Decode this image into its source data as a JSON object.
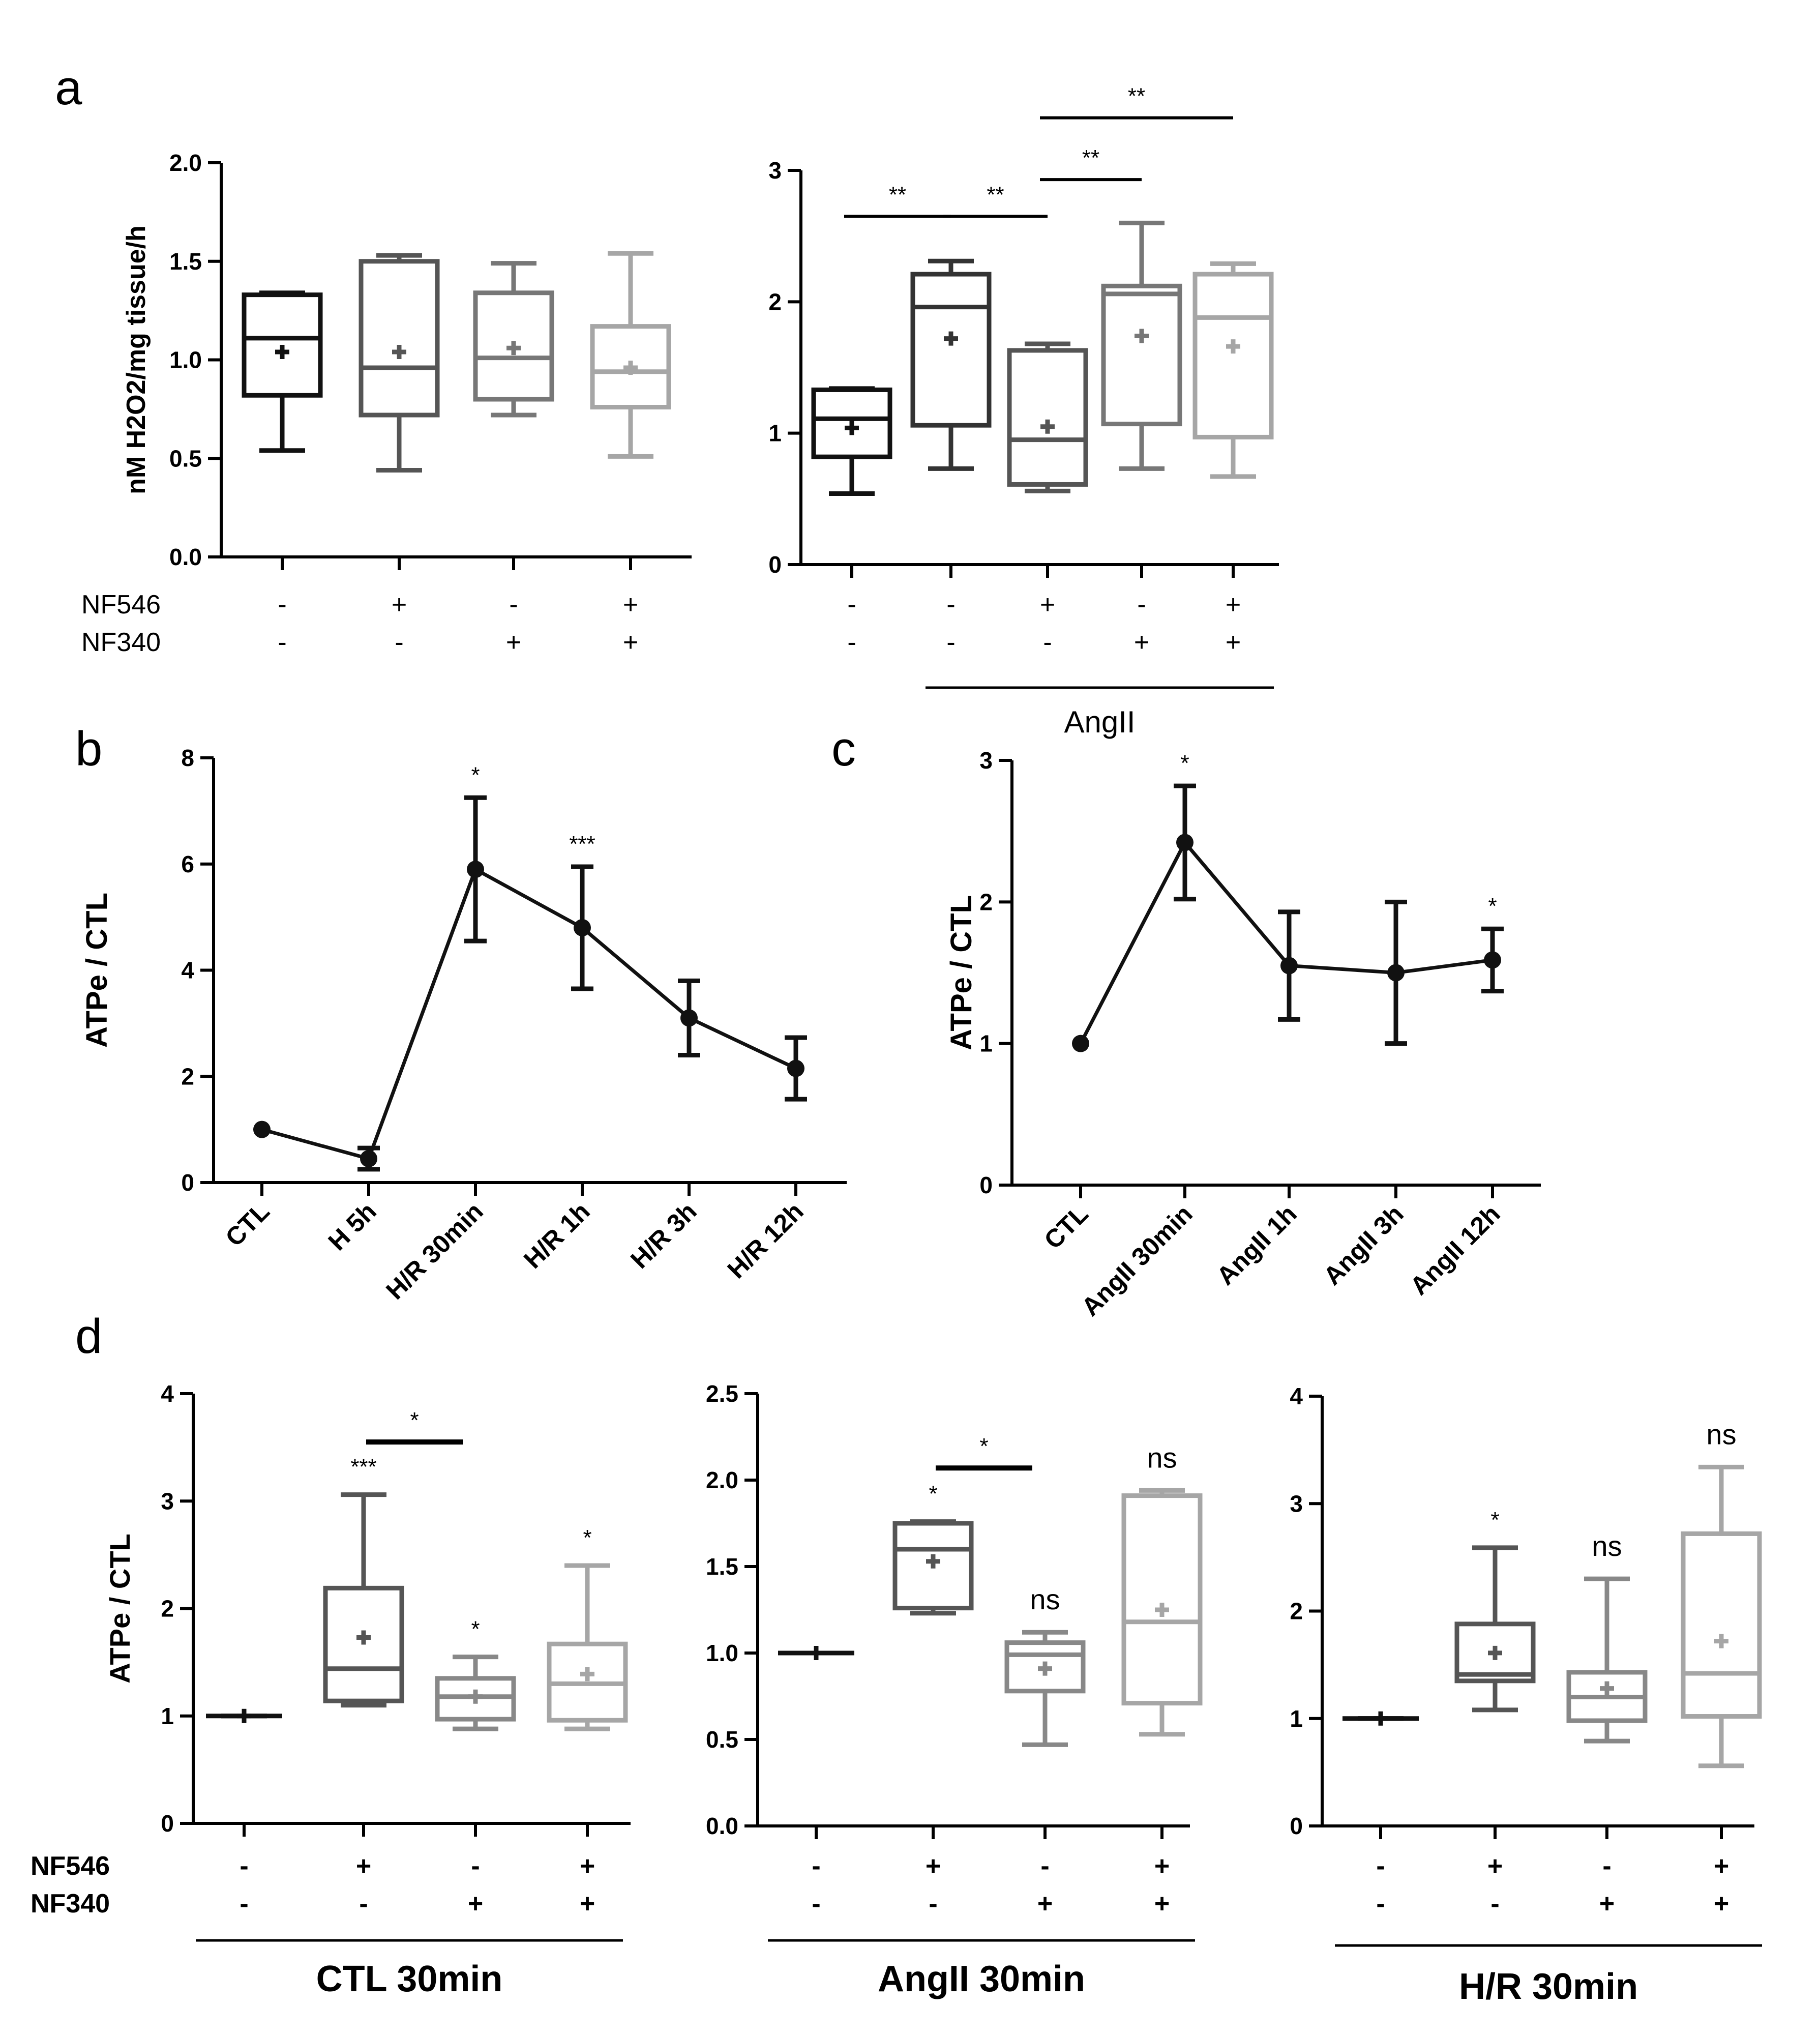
{
  "panel_labels": [
    "a",
    "b",
    "c",
    "d"
  ],
  "chart_data": [
    {
      "id": "a1",
      "type": "box",
      "ylabel": "nM H2O2/mg tissue/h",
      "ylim": [
        0,
        2.0
      ],
      "yticks": [
        0.0,
        0.5,
        1.0,
        1.5,
        2.0
      ],
      "ytick_labels": [
        "0.0",
        "0.5",
        "1.0",
        "1.5",
        "2.0"
      ],
      "condition_labels": [
        "NF546",
        "NF340"
      ],
      "conditions": [
        [
          "-",
          "-"
        ],
        [
          "+",
          "-"
        ],
        [
          "-",
          "+"
        ],
        [
          "+",
          "+"
        ]
      ],
      "boxes": [
        {
          "min": 0.54,
          "q1": 0.82,
          "median": 1.11,
          "q3": 1.33,
          "max": 1.34,
          "mean": 1.04,
          "color": "#111111"
        },
        {
          "min": 0.44,
          "q1": 0.72,
          "median": 0.96,
          "q3": 1.5,
          "max": 1.53,
          "mean": 1.04,
          "color": "#555555"
        },
        {
          "min": 0.72,
          "q1": 0.8,
          "median": 1.01,
          "q3": 1.34,
          "max": 1.49,
          "mean": 1.06,
          "color": "#777777"
        },
        {
          "min": 0.51,
          "q1": 0.76,
          "median": 0.94,
          "q3": 1.17,
          "max": 1.54,
          "mean": 0.96,
          "color": "#a6a6a6"
        }
      ],
      "significance": []
    },
    {
      "id": "a2",
      "type": "box",
      "ylabel": "",
      "ylim": [
        0,
        3
      ],
      "yticks": [
        0,
        1,
        2,
        3
      ],
      "ytick_labels": [
        "0",
        "1",
        "2",
        "3"
      ],
      "condition_labels": [],
      "conditions": [
        [
          "-",
          "-"
        ],
        [
          "-",
          "-"
        ],
        [
          "+",
          "-"
        ],
        [
          "-",
          "+"
        ],
        [
          "+",
          "+"
        ]
      ],
      "group_label": "AngII",
      "group_range": [
        1,
        4
      ],
      "boxes": [
        {
          "min": 0.54,
          "q1": 0.82,
          "median": 1.11,
          "q3": 1.33,
          "max": 1.34,
          "mean": 1.04,
          "color": "#111111"
        },
        {
          "min": 0.73,
          "q1": 1.06,
          "median": 1.96,
          "q3": 2.21,
          "max": 2.31,
          "mean": 1.72,
          "color": "#333333"
        },
        {
          "min": 0.56,
          "q1": 0.61,
          "median": 0.95,
          "q3": 1.63,
          "max": 1.68,
          "mean": 1.05,
          "color": "#555555"
        },
        {
          "min": 0.73,
          "q1": 1.07,
          "median": 2.06,
          "q3": 2.12,
          "max": 2.6,
          "mean": 1.74,
          "color": "#777777"
        },
        {
          "min": 0.67,
          "q1": 0.97,
          "median": 1.88,
          "q3": 2.21,
          "max": 2.29,
          "mean": 1.66,
          "color": "#a6a6a6"
        }
      ],
      "significance": [
        {
          "from": 0,
          "to": 1,
          "y": 2.65,
          "label": "**"
        },
        {
          "from": 1,
          "to": 2,
          "y": 2.65,
          "label": "**"
        },
        {
          "from": 2,
          "to": 3,
          "y": 2.93,
          "label": "**"
        },
        {
          "from": 2,
          "to": 4,
          "y": 3.4,
          "label": "**"
        }
      ]
    },
    {
      "id": "b",
      "type": "line",
      "ylabel": "ATPe / CTL",
      "ylim": [
        0,
        8
      ],
      "yticks": [
        0,
        2,
        4,
        6,
        8
      ],
      "ytick_labels": [
        "0",
        "2",
        "4",
        "6",
        "8"
      ],
      "categories": [
        "CTL",
        "H 5h",
        "H/R 30min",
        "H/R 1h",
        "H/R 3h",
        "H/R 12h"
      ],
      "values": [
        1.0,
        0.45,
        5.9,
        4.8,
        3.1,
        2.15
      ],
      "errors": [
        0,
        0.2,
        1.35,
        1.15,
        0.7,
        0.58
      ],
      "annotations": [
        "",
        "",
        "*",
        "***",
        "",
        ""
      ]
    },
    {
      "id": "c",
      "type": "line",
      "ylabel": "ATPe / CTL",
      "ylim": [
        0,
        3
      ],
      "yticks": [
        0,
        1,
        2,
        3
      ],
      "ytick_labels": [
        "0",
        "1",
        "2",
        "3"
      ],
      "categories": [
        "CTL",
        "AngII 30min",
        "AngII 1h",
        "AngII 3h",
        "AngII 12h"
      ],
      "values": [
        1.0,
        2.42,
        1.55,
        1.5,
        1.59
      ],
      "errors": [
        0,
        0.4,
        0.38,
        0.5,
        0.22
      ],
      "annotations": [
        "",
        "*",
        "",
        "",
        "*"
      ]
    },
    {
      "id": "d1",
      "type": "box",
      "ylabel": "ATPe / CTL",
      "ylim": [
        0,
        4
      ],
      "yticks": [
        0,
        1,
        2,
        3,
        4
      ],
      "ytick_labels": [
        "0",
        "1",
        "2",
        "3",
        "4"
      ],
      "condition_labels": [
        "NF546",
        "NF340"
      ],
      "conditions": [
        [
          "-",
          "-"
        ],
        [
          "+",
          "-"
        ],
        [
          "-",
          "+"
        ],
        [
          "+",
          "+"
        ]
      ],
      "group_label": "CTL 30min",
      "group_range": [
        0,
        3
      ],
      "boxes": [
        {
          "min": 1.0,
          "q1": 1.0,
          "median": 1.0,
          "q3": 1.0,
          "max": 1.0,
          "mean": 1.0,
          "color": "#111111"
        },
        {
          "min": 1.1,
          "q1": 1.14,
          "median": 1.44,
          "q3": 2.19,
          "max": 3.06,
          "mean": 1.73,
          "color": "#555555"
        },
        {
          "min": 0.88,
          "q1": 0.97,
          "median": 1.18,
          "q3": 1.35,
          "max": 1.55,
          "mean": 1.18,
          "color": "#888888"
        },
        {
          "min": 0.88,
          "q1": 0.96,
          "median": 1.3,
          "q3": 1.67,
          "max": 2.4,
          "mean": 1.39,
          "color": "#a6a6a6"
        }
      ],
      "annotations": [
        "",
        "***",
        "*",
        "*"
      ],
      "significance": [
        {
          "from": 1,
          "to": 2,
          "y": 3.55,
          "label": "*"
        }
      ]
    },
    {
      "id": "d2",
      "type": "box",
      "ylabel": "",
      "ylim": [
        0,
        2.5
      ],
      "yticks": [
        0.0,
        0.5,
        1.0,
        1.5,
        2.0,
        2.5
      ],
      "ytick_labels": [
        "0.0",
        "0.5",
        "1.0",
        "1.5",
        "2.0",
        "2.5"
      ],
      "condition_labels": [],
      "conditions": [
        [
          "-",
          "-"
        ],
        [
          "+",
          "-"
        ],
        [
          "-",
          "+"
        ],
        [
          "+",
          "+"
        ]
      ],
      "group_label": "AngII 30min",
      "group_range": [
        0,
        3
      ],
      "boxes": [
        {
          "min": 1.0,
          "q1": 1.0,
          "median": 1.0,
          "q3": 1.0,
          "max": 1.0,
          "mean": 1.0,
          "color": "#111111"
        },
        {
          "min": 1.23,
          "q1": 1.26,
          "median": 1.6,
          "q3": 1.75,
          "max": 1.76,
          "mean": 1.53,
          "color": "#555555"
        },
        {
          "min": 0.47,
          "q1": 0.78,
          "median": 0.99,
          "q3": 1.06,
          "max": 1.12,
          "mean": 0.91,
          "color": "#888888"
        },
        {
          "min": 0.53,
          "q1": 0.71,
          "median": 1.18,
          "q3": 1.91,
          "max": 1.94,
          "mean": 1.25,
          "color": "#a6a6a6"
        }
      ],
      "annotations": [
        "",
        "*",
        "ns",
        "ns"
      ],
      "significance": [
        {
          "from": 1,
          "to": 2,
          "y": 2.07,
          "label": "*"
        }
      ]
    },
    {
      "id": "d3",
      "type": "box",
      "ylabel": "",
      "ylim": [
        0,
        4
      ],
      "yticks": [
        0,
        1,
        2,
        3,
        4
      ],
      "ytick_labels": [
        "0",
        "1",
        "2",
        "3",
        "4"
      ],
      "condition_labels": [],
      "conditions": [
        [
          "-",
          "-"
        ],
        [
          "+",
          "-"
        ],
        [
          "-",
          "+"
        ],
        [
          "+",
          "+"
        ]
      ],
      "group_label": "H/R 30min",
      "group_range": [
        0,
        3
      ],
      "boxes": [
        {
          "min": 1.0,
          "q1": 1.0,
          "median": 1.0,
          "q3": 1.0,
          "max": 1.0,
          "mean": 1.0,
          "color": "#111111"
        },
        {
          "min": 1.08,
          "q1": 1.35,
          "median": 1.41,
          "q3": 1.88,
          "max": 2.59,
          "mean": 1.61,
          "color": "#555555"
        },
        {
          "min": 0.79,
          "q1": 0.98,
          "median": 1.2,
          "q3": 1.43,
          "max": 2.3,
          "mean": 1.28,
          "color": "#888888"
        },
        {
          "min": 0.56,
          "q1": 1.02,
          "median": 1.42,
          "q3": 2.72,
          "max": 3.34,
          "mean": 1.72,
          "color": "#a6a6a6"
        }
      ],
      "annotations": [
        "",
        "*",
        "ns",
        "ns"
      ],
      "significance": []
    }
  ]
}
